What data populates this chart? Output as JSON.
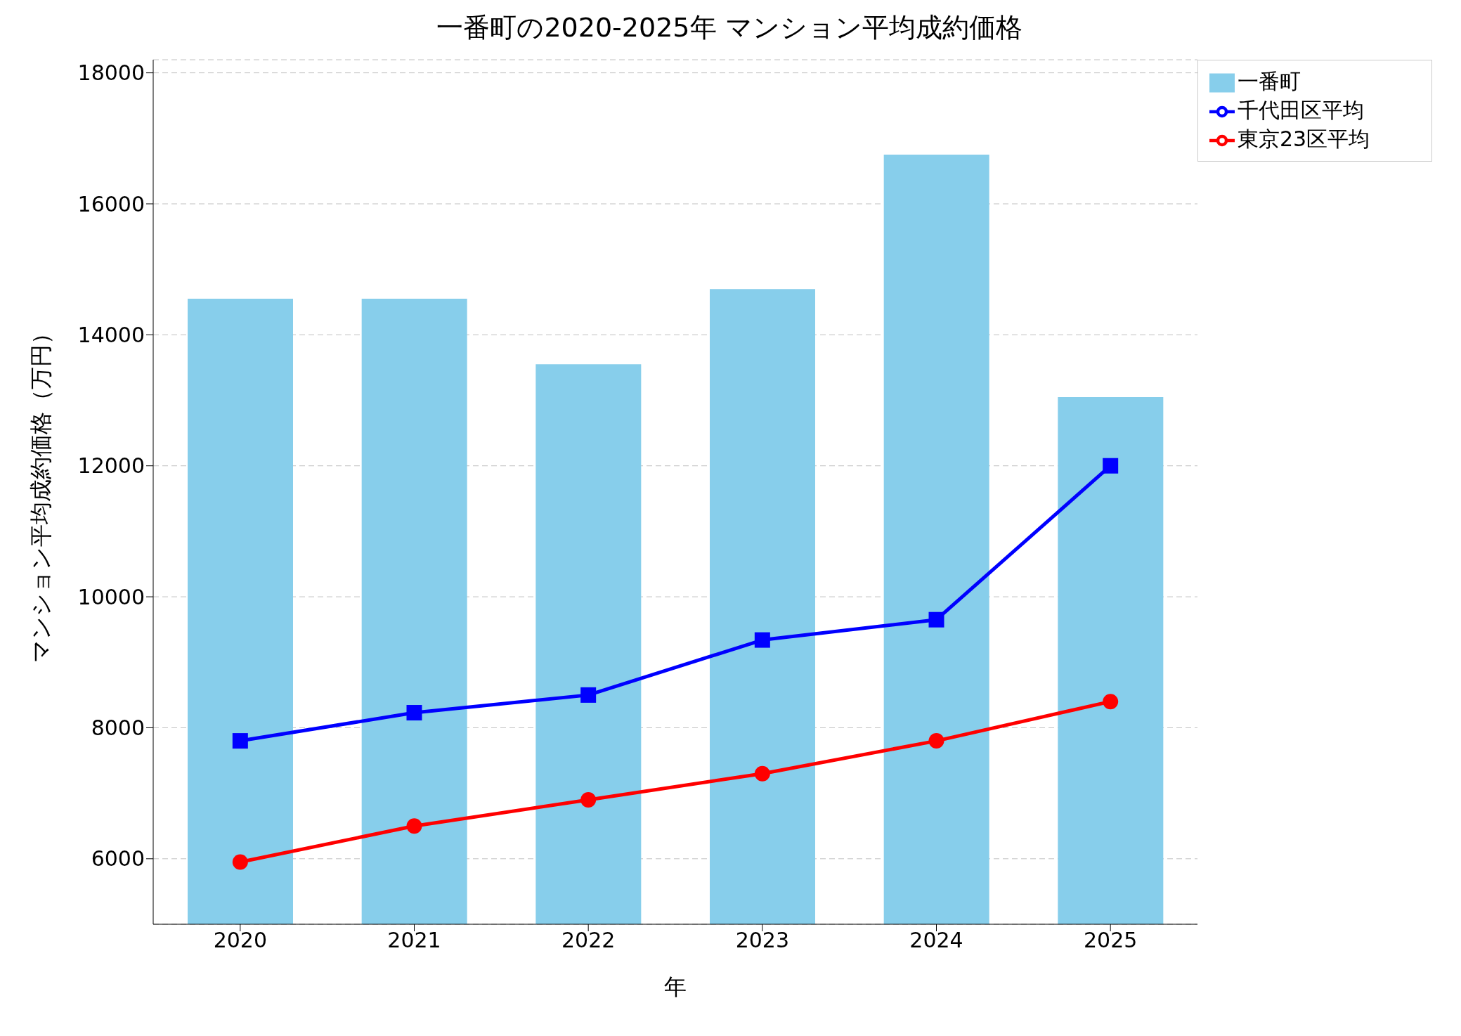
{
  "chart_data": {
    "type": "bar",
    "title": "一番町の2020-2025年 マンション平均成約価格",
    "xlabel": "年",
    "ylabel": "マンション平均成約価格（万円）",
    "categories": [
      "2020",
      "2021",
      "2022",
      "2023",
      "2024",
      "2025"
    ],
    "series": [
      {
        "name": "一番町",
        "color": "#87ceeb",
        "values": [
          14550,
          14550,
          13550,
          14700,
          16750,
          13050
        ]
      },
      {
        "name": "千代田区平均",
        "type": "line",
        "color": "#0000ff",
        "marker": "square",
        "line_style": "solid",
        "values": [
          7800,
          8230,
          8500,
          9340,
          9650,
          12000
        ]
      },
      {
        "name": "東京23区平均",
        "type": "line",
        "color": "#ff0000",
        "marker": "circle",
        "line_style": "solid",
        "values": [
          5950,
          6500,
          6900,
          7300,
          7800,
          8400
        ]
      }
    ],
    "ylim": [
      5000,
      18200
    ],
    "yticks": [
      6000,
      8000,
      10000,
      12000,
      14000,
      16000,
      18000
    ],
    "grid": "y",
    "legend": "top right"
  }
}
